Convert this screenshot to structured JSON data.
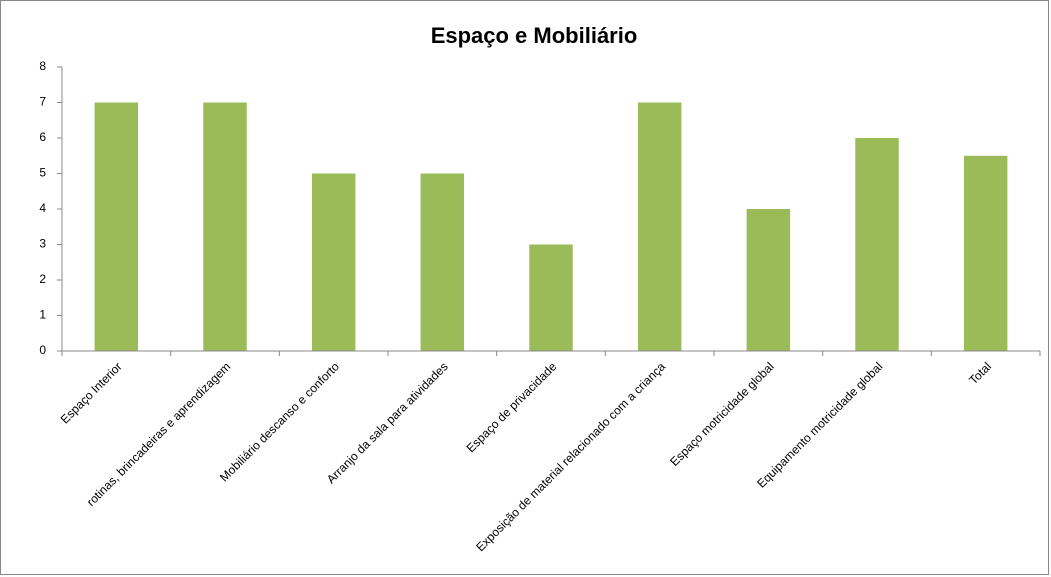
{
  "chart_data": {
    "type": "bar",
    "title": "Espaço e Mobiliário",
    "categories": [
      "Espaço Interior",
      "rotinas, brincadeiras e aprendizagem",
      "Mobiliário descanso e conforto",
      "Arranjo da sala para atividades",
      "Espaço de privacidade",
      "Exposição de material relacionado com a criança",
      "Espaço  motricidade global",
      "Equipamento motricidade global",
      "Total"
    ],
    "values": [
      7,
      7,
      5,
      5,
      3,
      7,
      4,
      6,
      5.5
    ],
    "color": "#9bbb59",
    "ylim": [
      0,
      8
    ],
    "yticks": [
      0,
      1,
      2,
      3,
      4,
      5,
      6,
      7,
      8
    ],
    "grid": false
  }
}
